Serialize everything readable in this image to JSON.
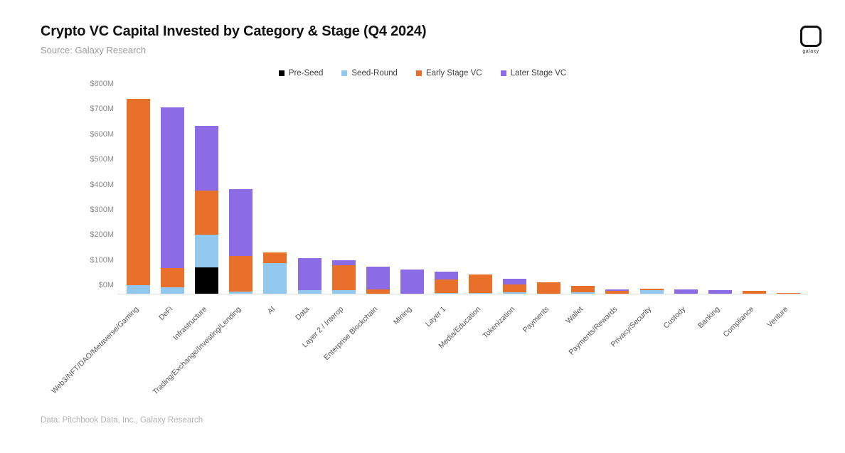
{
  "header": {
    "title": "Crypto VC Capital Invested by Category & Stage (Q4 2024)",
    "subtitle": "Source: Galaxy Research"
  },
  "logo": {
    "word": "galaxy"
  },
  "footer": {
    "credit": "Data: Pitchbook Data, Inc., Galaxy Research"
  },
  "chart_data": {
    "type": "bar",
    "stacked": true,
    "title": "Crypto VC Capital Invested by Category & Stage (Q4 2024)",
    "ylabel": "",
    "xlabel": "",
    "ylim": [
      0,
      800
    ],
    "grid": false,
    "legend_position": "top-center",
    "ytick_labels": [
      "$0M",
      "$100M",
      "$200M",
      "$300M",
      "$400M",
      "$500M",
      "$600M",
      "$700M",
      "$800M"
    ],
    "ytick_values": [
      0,
      100,
      200,
      300,
      400,
      500,
      600,
      700,
      800
    ],
    "categories": [
      "Web3/NFT/DAO/Metaverse/Gaming",
      "DeFi",
      "Infrastructure",
      "Trading/Exchange/Investing/Lending",
      "AI",
      "Data",
      "Layer 2 / Interop",
      "Enterprise Blockchain",
      "Mining",
      "Layer 1",
      "Media/Education",
      "Tokenization",
      "Payments",
      "Wallet",
      "Payments/Rewards",
      "Privacy/Security",
      "Custody",
      "Banking",
      "Compliance",
      "Venture"
    ],
    "series": [
      {
        "name": "Pre-Seed",
        "color": "#000000",
        "values": [
          0,
          0,
          105,
          0,
          0,
          0,
          0,
          0,
          0,
          0,
          0,
          0,
          0,
          0,
          0,
          0,
          0,
          0,
          0,
          0
        ]
      },
      {
        "name": "Seed-Round",
        "color": "#92c8ee",
        "values": [
          34,
          25,
          130,
          8,
          122,
          14,
          14,
          0,
          0,
          3,
          4,
          7,
          0,
          7,
          0,
          15,
          0,
          0,
          0,
          0
        ]
      },
      {
        "name": "Early Stage VC",
        "color": "#e8702b",
        "values": [
          740,
          76,
          175,
          141,
          42,
          0,
          99,
          17,
          0,
          54,
          72,
          30,
          45,
          25,
          10,
          5,
          0,
          0,
          12,
          2
        ]
      },
      {
        "name": "Later Stage VC",
        "color": "#8b6ce4",
        "values": [
          0,
          639,
          257,
          266,
          0,
          127,
          20,
          90,
          96,
          31,
          0,
          23,
          0,
          0,
          8,
          0,
          18,
          13,
          0,
          0
        ]
      }
    ],
    "units": "USD millions"
  }
}
